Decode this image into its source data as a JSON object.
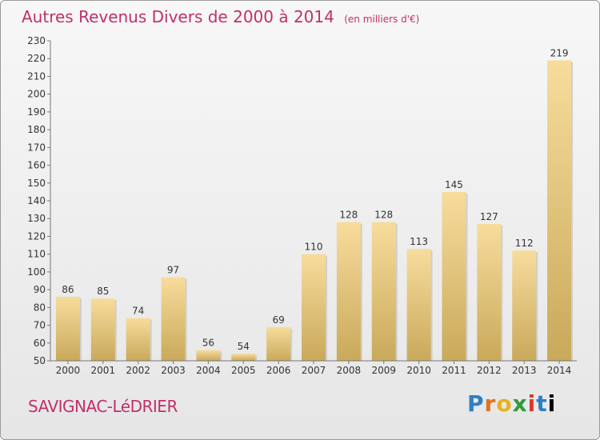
{
  "header": {
    "title": "Autres Revenus Divers de 2000 à 2014",
    "unit": "(en milliers d'€)"
  },
  "footer": {
    "city": "SAVIGNAC-LéDRIER",
    "logo_letters": [
      "P",
      "r",
      "o",
      "x",
      "i",
      "t",
      "i"
    ]
  },
  "colors": {
    "accent": "#c0306a",
    "bar_light": "#f7dc9c",
    "bar_dark": "#c9a95a"
  },
  "chart_data": {
    "type": "bar",
    "categories": [
      "2000",
      "2001",
      "2002",
      "2003",
      "2004",
      "2005",
      "2006",
      "2007",
      "2008",
      "2009",
      "2010",
      "2011",
      "2012",
      "2013",
      "2014"
    ],
    "values": [
      86,
      85,
      74,
      97,
      56,
      54,
      69,
      110,
      128,
      128,
      113,
      145,
      127,
      112,
      219
    ],
    "ylim": [
      50,
      230
    ],
    "yticks": [
      50,
      60,
      70,
      80,
      90,
      100,
      110,
      120,
      130,
      140,
      150,
      160,
      170,
      180,
      190,
      200,
      210,
      220,
      230
    ],
    "grid": false,
    "data_labels": true
  }
}
